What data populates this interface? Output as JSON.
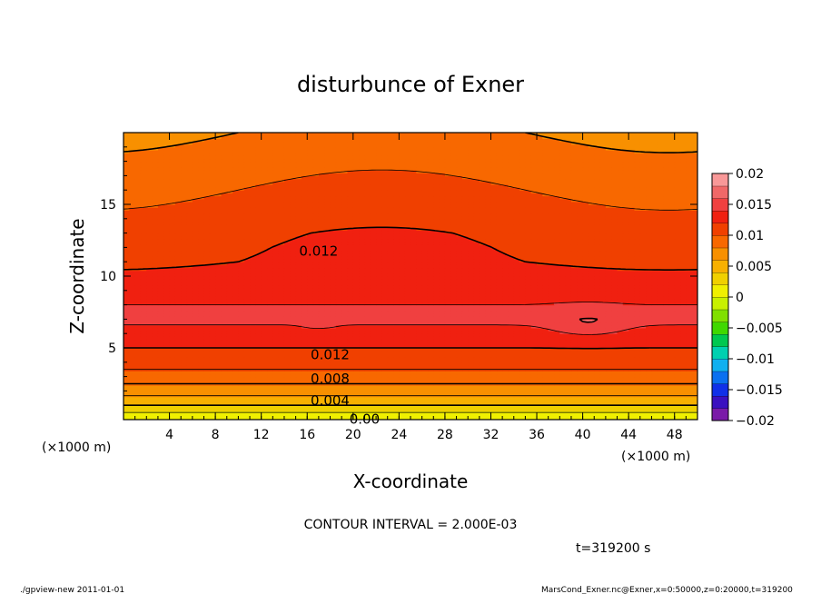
{
  "chart_data": {
    "type": "heatmap",
    "title": "disturbunce of Exner",
    "xlabel": "X-coordinate",
    "ylabel": "Z-coordinate",
    "x_unit": "(×1000 m)",
    "y_unit": "(×1000 m)",
    "xlim": [
      0,
      50
    ],
    "ylim": [
      0,
      20
    ],
    "x_ticks": [
      4,
      8,
      12,
      16,
      20,
      24,
      28,
      32,
      36,
      40,
      44,
      48
    ],
    "y_ticks": [
      5,
      10,
      15
    ],
    "contour_interval_text": "CONTOUR INTERVAL = 2.000E-03",
    "time_text": "t=319200 s",
    "contour_labels": [
      {
        "text": "0.012",
        "x": 17,
        "z": 11.8
      },
      {
        "text": "0.012",
        "x": 18,
        "z": 4.6
      },
      {
        "text": "0.008",
        "x": 18,
        "z": 2.9
      },
      {
        "text": "0.004",
        "x": 18,
        "z": 1.4
      },
      {
        "text": "0.00",
        "x": 21,
        "z": 0.1
      }
    ],
    "colorbar": {
      "vmin": -0.02,
      "vmax": 0.02,
      "ticks": [
        "0.02",
        "0.015",
        "0.01",
        "0.005",
        "0",
        "−0.005",
        "−0.01",
        "−0.015",
        "−0.02"
      ],
      "colors": [
        "#7a1aa8",
        "#3a10c0",
        "#1030e8",
        "#0a70f0",
        "#10b0f0",
        "#00d0b0",
        "#00c850",
        "#40d800",
        "#80e000",
        "#c8f000",
        "#f0f000",
        "#f0d000",
        "#f8b000",
        "#f89000",
        "#f86800",
        "#f04000",
        "#f02010",
        "#f04040",
        "#f06868",
        "#f89898"
      ]
    },
    "field_description_levels": [
      0.0,
      0.002,
      0.004,
      0.006,
      0.008,
      0.01,
      0.012,
      0.014,
      0.016
    ],
    "approx_field_profile": {
      "z": [
        0,
        1,
        2,
        3,
        4,
        5,
        7,
        9,
        11,
        13,
        15,
        17,
        19,
        20
      ],
      "value": [
        0.0,
        0.004,
        0.007,
        0.009,
        0.011,
        0.012,
        0.0145,
        0.0135,
        0.012,
        0.0115,
        0.0105,
        0.0095,
        0.0085,
        0.008
      ]
    }
  },
  "footer": {
    "left": "./gpview-new   2011-01-01",
    "right": "MarsCond_Exner.nc@Exner,x=0:50000,z=0:20000,t=319200"
  }
}
